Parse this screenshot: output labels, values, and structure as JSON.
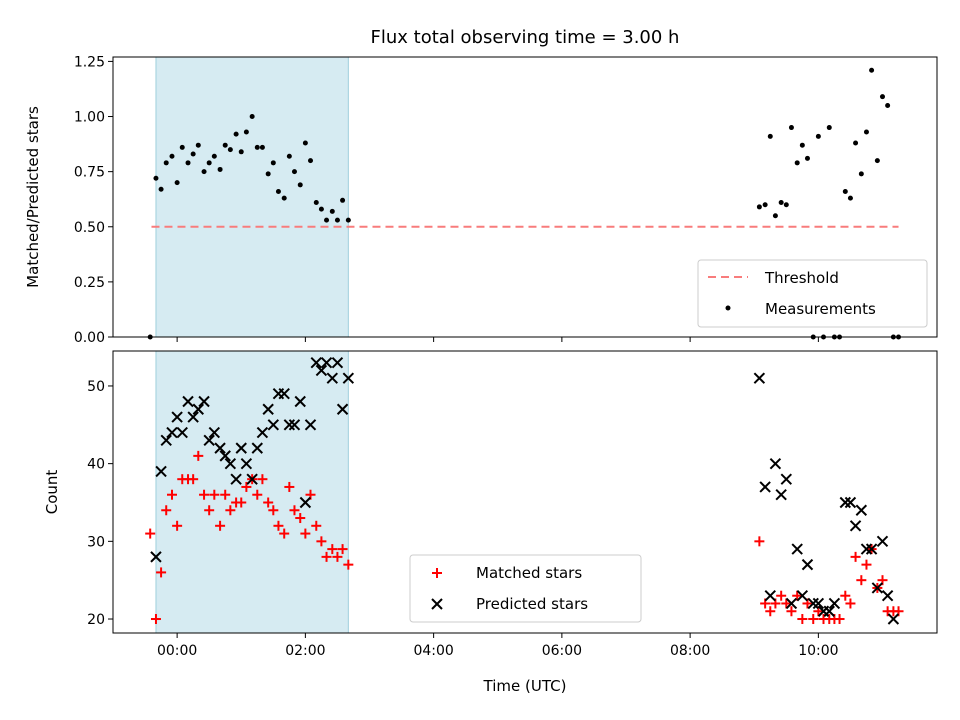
{
  "chart_data": [
    {
      "type": "scatter",
      "title": "Flux total observing time = 3.00 h",
      "xlabel": "",
      "ylabel": "Matched/Predicted stars",
      "ylim": [
        0,
        1.27
      ],
      "xlim": [
        -1.0,
        11.85
      ],
      "yticks": [
        "0.00",
        "0.25",
        "0.50",
        "0.75",
        "1.00",
        "1.25"
      ],
      "shaded_region": {
        "x": [
          -0.33,
          2.67
        ],
        "color": "#add8e6"
      },
      "threshold": {
        "name": "Threshold",
        "value": 0.5,
        "x": [
          -0.4,
          11.25
        ],
        "color": "#f87c7c"
      },
      "series": [
        {
          "name": "Measurements",
          "color": "#000000",
          "x": [
            -0.42,
            -0.33,
            -0.25,
            -0.17,
            -0.08,
            0.0,
            0.08,
            0.17,
            0.25,
            0.33,
            0.42,
            0.5,
            0.58,
            0.67,
            0.75,
            0.83,
            0.92,
            1.0,
            1.08,
            1.17,
            1.25,
            1.33,
            1.42,
            1.5,
            1.58,
            1.67,
            1.75,
            1.83,
            1.92,
            2.0,
            2.08,
            2.17,
            2.25,
            2.33,
            2.42,
            2.5,
            2.58,
            2.67,
            9.08,
            9.17,
            9.25,
            9.33,
            9.42,
            9.5,
            9.58,
            9.67,
            9.75,
            9.83,
            9.92,
            10.0,
            10.08,
            10.17,
            10.25,
            10.33,
            10.42,
            10.5,
            10.58,
            10.67,
            10.75,
            10.83,
            10.92,
            11.0,
            11.08,
            11.17,
            11.25
          ],
          "y": [
            0.0,
            0.72,
            0.67,
            0.79,
            0.82,
            0.7,
            0.86,
            0.79,
            0.83,
            0.87,
            0.75,
            0.79,
            0.82,
            0.76,
            0.87,
            0.85,
            0.92,
            0.84,
            0.93,
            1.0,
            0.86,
            0.86,
            0.74,
            0.79,
            0.66,
            0.63,
            0.82,
            0.75,
            0.69,
            0.88,
            0.8,
            0.61,
            0.58,
            0.53,
            0.57,
            0.53,
            0.62,
            0.53,
            0.59,
            0.6,
            0.91,
            0.55,
            0.61,
            0.6,
            0.95,
            0.79,
            0.87,
            0.81,
            0.0,
            0.91,
            0.0,
            0.95,
            0.0,
            0.0,
            0.66,
            0.63,
            0.88,
            0.74,
            0.93,
            1.21,
            0.8,
            1.09,
            1.05,
            0.0,
            0.0
          ]
        }
      ]
    },
    {
      "type": "scatter",
      "title": "",
      "xlabel": "Time (UTC)",
      "ylabel": "Count",
      "ylim": [
        18.2,
        54.5
      ],
      "xlim": [
        -1.0,
        11.85
      ],
      "yticks": [
        "20",
        "30",
        "40",
        "50"
      ],
      "xticks": [
        "00:00",
        "02:00",
        "04:00",
        "06:00",
        "08:00",
        "10:00"
      ],
      "shaded_region": {
        "x": [
          -0.33,
          2.67
        ],
        "color": "#add8e6"
      },
      "series": [
        {
          "name": "Matched stars",
          "marker": "+",
          "color": "#ff0000",
          "x": [
            -0.42,
            -0.33,
            -0.25,
            -0.17,
            -0.08,
            0.0,
            0.08,
            0.17,
            0.25,
            0.33,
            0.42,
            0.5,
            0.58,
            0.67,
            0.75,
            0.83,
            0.92,
            1.0,
            1.08,
            1.17,
            1.25,
            1.33,
            1.42,
            1.5,
            1.58,
            1.67,
            1.75,
            1.83,
            1.92,
            2.0,
            2.08,
            2.17,
            2.25,
            2.33,
            2.42,
            2.5,
            2.58,
            2.67,
            9.08,
            9.17,
            9.25,
            9.33,
            9.42,
            9.5,
            9.58,
            9.67,
            9.75,
            9.83,
            9.92,
            10.0,
            10.08,
            10.17,
            10.25,
            10.33,
            10.42,
            10.5,
            10.58,
            10.67,
            10.75,
            10.83,
            10.92,
            11.0,
            11.08,
            11.17,
            11.25
          ],
          "y": [
            31,
            20,
            26,
            34,
            36,
            32,
            38,
            38,
            38,
            41,
            36,
            34,
            36,
            32,
            36,
            34,
            35,
            35,
            37,
            38,
            36,
            38,
            35,
            34,
            32,
            31,
            37,
            34,
            33,
            31,
            36,
            32,
            30,
            28,
            29,
            28,
            29,
            27,
            30,
            22,
            21,
            22,
            23,
            22,
            21,
            23,
            20,
            22,
            20,
            21,
            20,
            20,
            20,
            20,
            23,
            22,
            28,
            25,
            27,
            29,
            24,
            25,
            21,
            21,
            21
          ]
        },
        {
          "name": "Predicted stars",
          "marker": "x",
          "color": "#000000",
          "x": [
            -0.42,
            -0.33,
            -0.25,
            -0.17,
            -0.08,
            0.0,
            0.08,
            0.17,
            0.25,
            0.33,
            0.42,
            0.5,
            0.58,
            0.67,
            0.75,
            0.83,
            0.92,
            1.0,
            1.08,
            1.17,
            1.25,
            1.33,
            1.42,
            1.5,
            1.58,
            1.67,
            1.75,
            1.83,
            1.92,
            2.0,
            2.08,
            2.17,
            2.25,
            2.33,
            2.42,
            2.5,
            2.58,
            2.67,
            9.08,
            9.17,
            9.25,
            9.33,
            9.42,
            9.5,
            9.58,
            9.67,
            9.75,
            9.83,
            9.92,
            10.0,
            10.08,
            10.17,
            10.25,
            10.33,
            10.42,
            10.5,
            10.58,
            10.67,
            10.75,
            10.83,
            10.92,
            11.0,
            11.08,
            11.17,
            11.25
          ],
          "y": [
            null,
            28,
            39,
            43,
            44,
            46,
            44,
            48,
            46,
            47,
            48,
            43,
            44,
            42,
            41,
            40,
            38,
            42,
            40,
            38,
            42,
            44,
            47,
            45,
            49,
            49,
            45,
            45,
            48,
            35,
            45,
            53,
            52,
            53,
            51,
            53,
            47,
            51,
            51,
            37,
            23,
            40,
            36,
            38,
            22,
            29,
            23,
            27,
            22,
            22,
            21,
            21,
            22,
            null,
            35,
            35,
            32,
            34,
            29,
            29,
            24,
            30,
            23,
            20,
            null
          ]
        }
      ]
    }
  ],
  "legend_top": {
    "entries": [
      "Threshold",
      "Measurements"
    ],
    "placement": "lower-right"
  },
  "legend_bottom": {
    "entries": [
      "Matched stars",
      "Predicted stars"
    ],
    "placement": "lower-center"
  }
}
